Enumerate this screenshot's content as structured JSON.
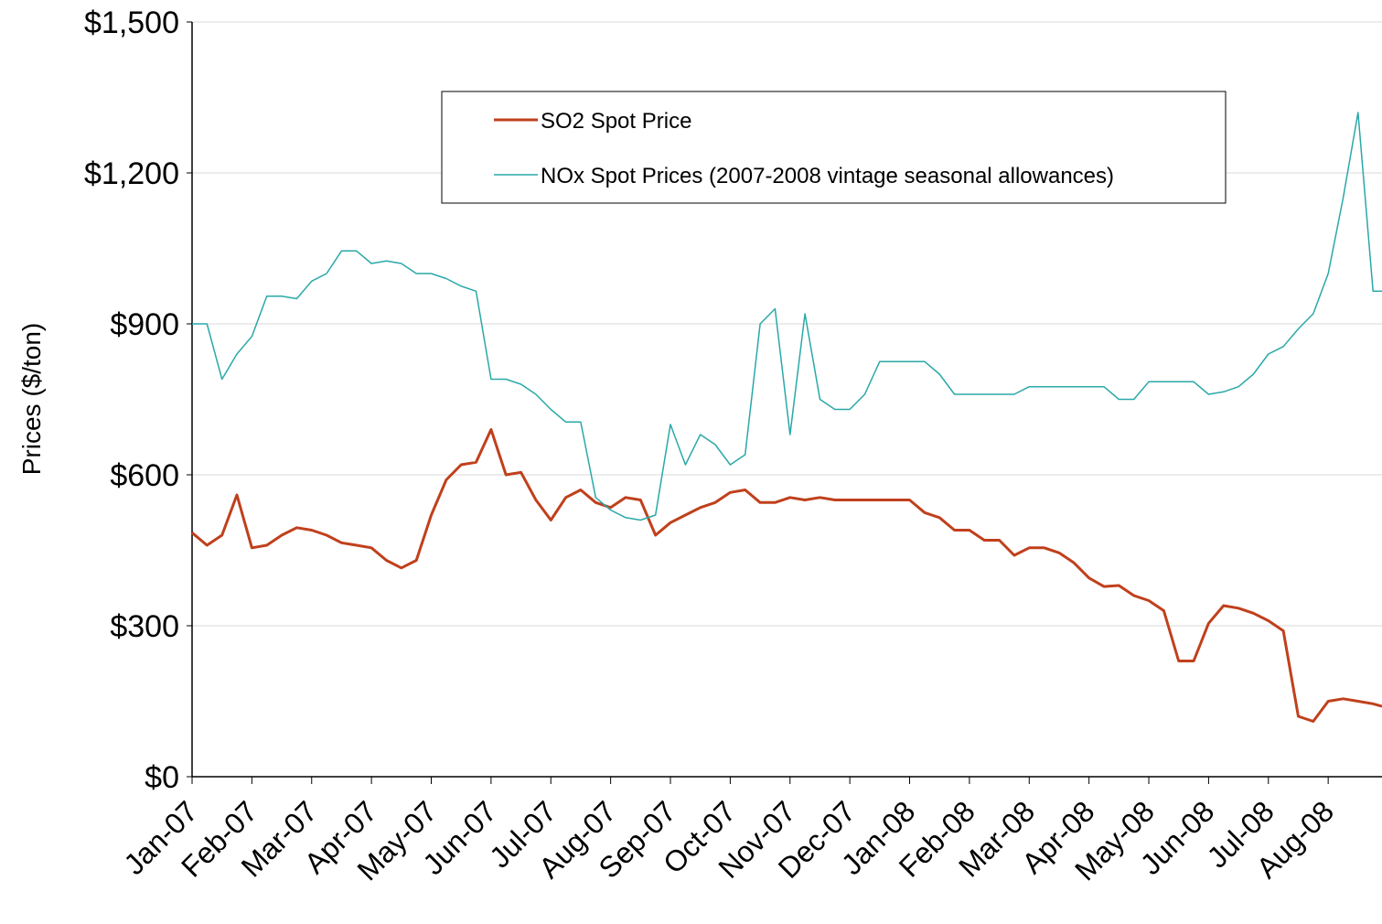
{
  "chart_data": {
    "type": "line",
    "y_label": "Prices  ($/ton)",
    "x": [
      0,
      0.25,
      0.5,
      0.75,
      1,
      1.25,
      1.5,
      1.75,
      2,
      2.25,
      2.5,
      2.75,
      3,
      3.25,
      3.5,
      3.75,
      4,
      4.25,
      4.5,
      4.75,
      5,
      5.25,
      5.5,
      5.75,
      6,
      6.25,
      6.5,
      6.75,
      7,
      7.25,
      7.5,
      7.75,
      8,
      8.25,
      8.5,
      8.75,
      9,
      9.25,
      9.5,
      9.75,
      10,
      10.25,
      10.5,
      10.75,
      11,
      11.25,
      11.5,
      11.75,
      12,
      12.25,
      12.5,
      12.75,
      13,
      13.25,
      13.5,
      13.75,
      14,
      14.25,
      14.5,
      14.75,
      15,
      15.25,
      15.5,
      15.75,
      16,
      16.25,
      16.5,
      16.75,
      17,
      17.25,
      17.5,
      17.75,
      18,
      18.25,
      18.5,
      18.75,
      19,
      19.25,
      19.5,
      19.75,
      19.9
    ],
    "series": [
      {
        "name": "SO2 Spot Price",
        "color": "#c0401c",
        "width": 3,
        "values": [
          485,
          460,
          480,
          560,
          455,
          460,
          480,
          495,
          490,
          480,
          465,
          460,
          455,
          430,
          415,
          430,
          520,
          590,
          620,
          625,
          690,
          600,
          605,
          550,
          510,
          555,
          570,
          545,
          535,
          555,
          550,
          480,
          505,
          520,
          535,
          545,
          565,
          570,
          545,
          545,
          555,
          550,
          555,
          550,
          550,
          550,
          550,
          550,
          550,
          525,
          515,
          490,
          490,
          470,
          470,
          440,
          455,
          455,
          445,
          425,
          395,
          378,
          380,
          360,
          350,
          330,
          230,
          230,
          305,
          340,
          335,
          325,
          310,
          290,
          120,
          110,
          150,
          155,
          150,
          145,
          140
        ]
      },
      {
        "name": "NOx Spot Prices (2007-2008 vintage seasonal allowances)",
        "color": "#2aa8a8",
        "width": 1.5,
        "values": [
          900,
          900,
          790,
          840,
          875,
          955,
          955,
          950,
          985,
          1000,
          1045,
          1045,
          1020,
          1025,
          1020,
          1000,
          1000,
          990,
          975,
          965,
          790,
          790,
          780,
          760,
          730,
          705,
          705,
          555,
          530,
          515,
          510,
          520,
          700,
          620,
          680,
          660,
          620,
          640,
          900,
          930,
          680,
          920,
          750,
          730,
          730,
          760,
          825,
          825,
          825,
          825,
          800,
          760,
          760,
          760,
          760,
          760,
          775,
          775,
          775,
          775,
          775,
          775,
          750,
          750,
          785,
          785,
          785,
          785,
          760,
          765,
          775,
          800,
          840,
          855,
          890,
          920,
          1000,
          1150,
          1320,
          965,
          965
        ]
      }
    ],
    "xlim": [
      0,
      19.9
    ],
    "xticks": [
      {
        "value": 0,
        "label": "Jan-07"
      },
      {
        "value": 1,
        "label": "Feb-07"
      },
      {
        "value": 2,
        "label": "Mar-07"
      },
      {
        "value": 3,
        "label": "Apr-07"
      },
      {
        "value": 4,
        "label": "May-07"
      },
      {
        "value": 5,
        "label": "Jun-07"
      },
      {
        "value": 6,
        "label": "Jul-07"
      },
      {
        "value": 7,
        "label": "Aug-07"
      },
      {
        "value": 8,
        "label": "Sep-07"
      },
      {
        "value": 9,
        "label": "Oct-07"
      },
      {
        "value": 10,
        "label": "Nov-07"
      },
      {
        "value": 11,
        "label": "Dec-07"
      },
      {
        "value": 12,
        "label": "Jan-08"
      },
      {
        "value": 13,
        "label": "Feb-08"
      },
      {
        "value": 14,
        "label": "Mar-08"
      },
      {
        "value": 15,
        "label": "Apr-08"
      },
      {
        "value": 16,
        "label": "May-08"
      },
      {
        "value": 17,
        "label": "Jun-08"
      },
      {
        "value": 18,
        "label": "Jul-08"
      },
      {
        "value": 19,
        "label": "Aug-08"
      }
    ],
    "ylim": [
      0,
      1500
    ],
    "yticks": [
      {
        "value": 0,
        "label": "$0"
      },
      {
        "value": 300,
        "label": "$300"
      },
      {
        "value": 600,
        "label": "$600"
      },
      {
        "value": 900,
        "label": "$900"
      },
      {
        "value": 1200,
        "label": "$1,200"
      },
      {
        "value": 1500,
        "label": "$1,500"
      }
    ],
    "grid": true,
    "legend": "top"
  }
}
